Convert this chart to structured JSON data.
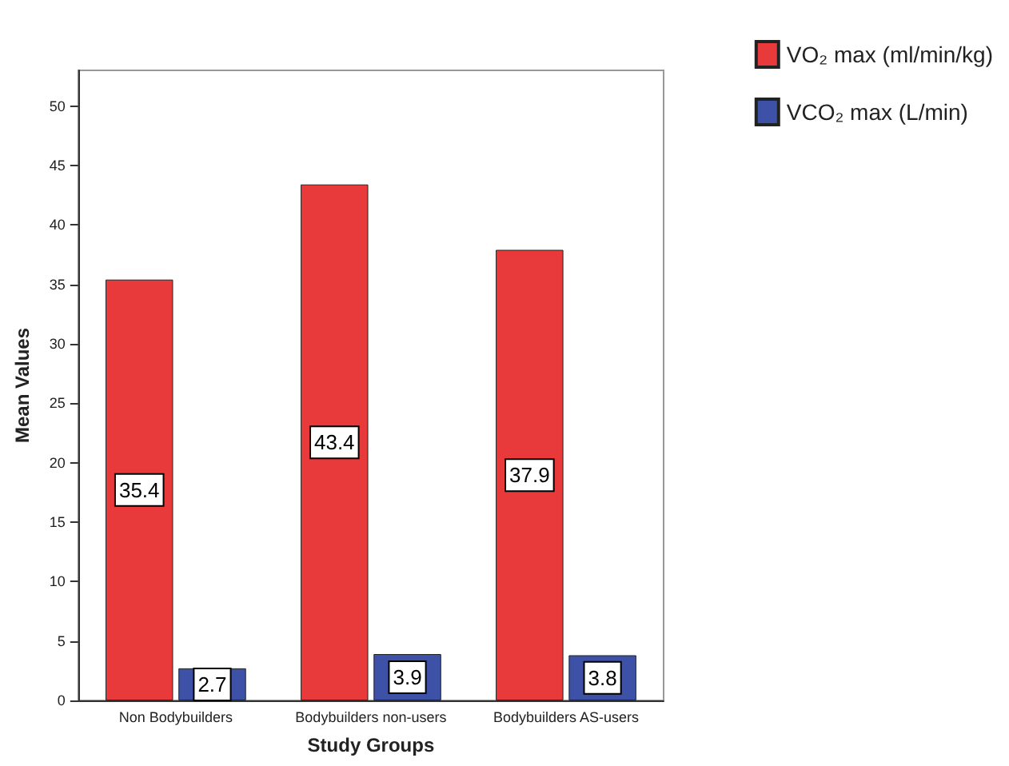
{
  "chart_data": {
    "type": "bar",
    "xlabel": "Study Groups",
    "ylabel": "Mean Values",
    "categories": [
      "Non Bodybuilders",
      "Bodybuilders non-users",
      "Bodybuilders AS-users"
    ],
    "series": [
      {
        "name": "VO₂ max (ml/min/kg)",
        "color": "#e83a3a",
        "values": [
          35.4,
          43.4,
          37.9
        ]
      },
      {
        "name": "VCO₂ max (L/min)",
        "color": "#3d52a6",
        "values": [
          2.7,
          3.9,
          3.8
        ]
      }
    ],
    "ylim": [
      0,
      53
    ],
    "yticks": [
      0,
      5,
      10,
      15,
      20,
      25,
      30,
      35,
      40,
      45,
      50
    ],
    "grid": false,
    "legend": "top right",
    "data_labels": true
  }
}
